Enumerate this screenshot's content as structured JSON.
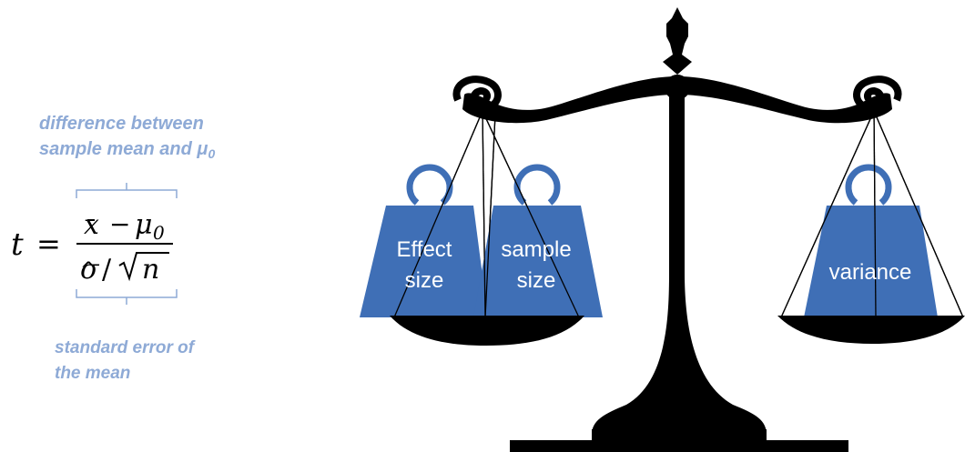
{
  "formula": {
    "lhs": "t",
    "equals": "=",
    "numerator_xbar": "x",
    "numerator_op": "−",
    "numerator_mu": "μ",
    "numerator_sub": "0",
    "denominator_sigma": "σ",
    "denominator_slash": "/",
    "denominator_n": "n"
  },
  "annotations": {
    "top_line1": "difference between",
    "top_line2": "sample mean and",
    "top_mu": "μ",
    "top_sub": "0",
    "bottom_line1": "standard error of",
    "bottom_line2": "the mean"
  },
  "weights": {
    "effect_line1": "Effect",
    "effect_line2": "size",
    "sample_line1": "sample",
    "sample_line2": "size",
    "variance": "variance"
  },
  "colors": {
    "annotation": "#8eaad6",
    "weight": "#3f6fb6",
    "scale": "#000000"
  }
}
